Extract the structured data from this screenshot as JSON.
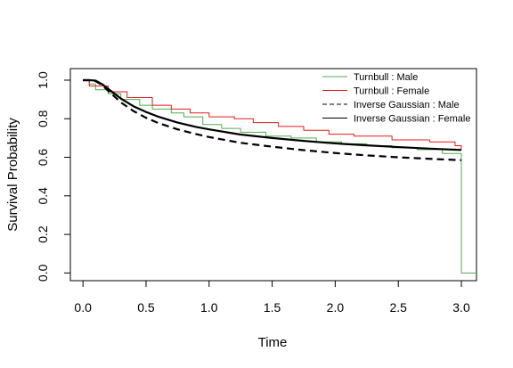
{
  "chart_data": {
    "type": "line",
    "title": "",
    "xlabel": "Time",
    "ylabel": "Survival Probability",
    "xlim": [
      -0.1,
      3.12
    ],
    "ylim": [
      -0.04,
      1.06
    ],
    "xticks": [
      0.0,
      0.5,
      1.0,
      1.5,
      2.0,
      2.5,
      3.0
    ],
    "xtick_labels": [
      "0.0",
      "0.5",
      "1.0",
      "1.5",
      "2.0",
      "2.5",
      "3.0"
    ],
    "yticks": [
      0.0,
      0.2,
      0.4,
      0.6,
      0.8,
      1.0
    ],
    "ytick_labels": [
      "0.0",
      "0.2",
      "0.4",
      "0.6",
      "0.8",
      "1.0"
    ],
    "grid": false,
    "legend_position": "top-right",
    "series": [
      {
        "name": "Turnbull : Male",
        "style": "step",
        "color": "#4daf4a",
        "dash": "solid",
        "x": [
          0.0,
          0.05,
          0.1,
          0.2,
          0.3,
          0.45,
          0.55,
          0.7,
          0.8,
          0.95,
          1.1,
          1.25,
          1.45,
          1.65,
          1.85,
          2.05,
          2.25,
          2.45,
          2.65,
          2.85,
          3.0,
          3.12
        ],
        "y": [
          1.0,
          0.98,
          0.95,
          0.93,
          0.9,
          0.87,
          0.85,
          0.83,
          0.81,
          0.77,
          0.75,
          0.73,
          0.71,
          0.7,
          0.68,
          0.67,
          0.66,
          0.65,
          0.64,
          0.62,
          0.0,
          0.0
        ]
      },
      {
        "name": "Turnbull : Female",
        "style": "step",
        "color": "#e41a1c",
        "dash": "solid",
        "x": [
          0.0,
          0.05,
          0.2,
          0.35,
          0.55,
          0.7,
          0.85,
          1.0,
          1.2,
          1.35,
          1.55,
          1.75,
          1.95,
          2.15,
          2.45,
          2.75,
          2.95,
          3.0
        ],
        "y": [
          1.0,
          0.97,
          0.94,
          0.91,
          0.87,
          0.85,
          0.83,
          0.81,
          0.8,
          0.78,
          0.76,
          0.74,
          0.72,
          0.71,
          0.69,
          0.68,
          0.66,
          0.64
        ]
      },
      {
        "name": "Inverse Gaussian : Male",
        "style": "line",
        "color": "#000000",
        "dash": "dashed",
        "x": [
          0.0,
          0.05,
          0.1,
          0.15,
          0.2,
          0.3,
          0.4,
          0.5,
          0.6,
          0.75,
          0.9,
          1.0,
          1.25,
          1.5,
          1.75,
          2.0,
          2.25,
          2.5,
          2.75,
          3.0
        ],
        "y": [
          1.0,
          1.0,
          0.995,
          0.975,
          0.945,
          0.885,
          0.84,
          0.805,
          0.777,
          0.745,
          0.72,
          0.705,
          0.675,
          0.655,
          0.637,
          0.622,
          0.61,
          0.6,
          0.592,
          0.585
        ]
      },
      {
        "name": "Inverse Gaussian : Female",
        "style": "line",
        "color": "#000000",
        "dash": "solid",
        "x": [
          0.0,
          0.05,
          0.1,
          0.15,
          0.2,
          0.3,
          0.4,
          0.5,
          0.6,
          0.75,
          0.9,
          1.0,
          1.25,
          1.5,
          1.75,
          2.0,
          2.25,
          2.5,
          2.75,
          3.0
        ],
        "y": [
          1.0,
          1.0,
          0.998,
          0.98,
          0.955,
          0.905,
          0.865,
          0.835,
          0.81,
          0.78,
          0.757,
          0.745,
          0.718,
          0.7,
          0.685,
          0.672,
          0.662,
          0.653,
          0.645,
          0.638
        ]
      }
    ]
  }
}
